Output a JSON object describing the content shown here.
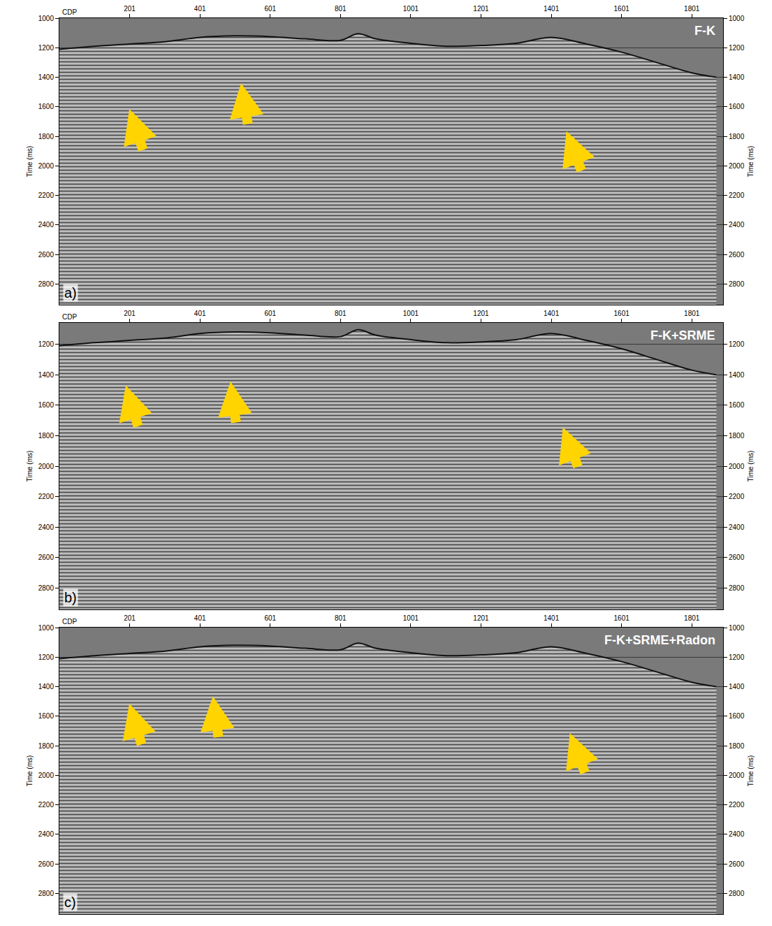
{
  "chart_data": [
    {
      "type": "area",
      "title": "F-K",
      "panel": "a)",
      "x_label": "CDP",
      "y_label": "Time (ms)",
      "x": [
        1,
        101,
        201,
        301,
        401,
        501,
        601,
        701,
        801,
        851,
        901,
        1001,
        1101,
        1201,
        1301,
        1401,
        1501,
        1601,
        1701,
        1801,
        1871
      ],
      "values": [
        1210,
        1190,
        1175,
        1160,
        1130,
        1120,
        1125,
        1140,
        1150,
        1105,
        1140,
        1170,
        1190,
        1185,
        1170,
        1130,
        1175,
        1230,
        1300,
        1370,
        1400
      ],
      "xlim": [
        1,
        1890
      ],
      "ylim": [
        1000,
        2940
      ],
      "xticks": [
        201,
        401,
        601,
        801,
        1001,
        1201,
        1401,
        1601,
        1801
      ],
      "yticks": [
        1000,
        1200,
        1400,
        1600,
        1800,
        2000,
        2200,
        2400,
        2600,
        2800
      ],
      "grid": true
    },
    {
      "type": "area",
      "title": "F-K+SRME",
      "panel": "b)",
      "x_label": "CDP",
      "y_label": "Time (ms)",
      "x": [
        1,
        101,
        201,
        301,
        401,
        501,
        601,
        701,
        801,
        851,
        901,
        1001,
        1101,
        1201,
        1301,
        1401,
        1501,
        1601,
        1701,
        1801,
        1871
      ],
      "values": [
        1210,
        1190,
        1175,
        1160,
        1130,
        1120,
        1125,
        1140,
        1150,
        1105,
        1140,
        1170,
        1190,
        1185,
        1170,
        1130,
        1175,
        1230,
        1300,
        1370,
        1400
      ],
      "xlim": [
        1,
        1890
      ],
      "ylim": [
        1060,
        2940
      ],
      "xticks": [
        201,
        401,
        601,
        801,
        1001,
        1201,
        1401,
        1601,
        1801
      ],
      "yticks": [
        1200,
        1400,
        1600,
        1800,
        2000,
        2200,
        2400,
        2600,
        2800
      ],
      "grid": true
    },
    {
      "type": "area",
      "title": "F-K+SRME+Radon",
      "panel": "c)",
      "x_label": "CDP",
      "y_label": "Time (ms)",
      "x": [
        1,
        101,
        201,
        301,
        401,
        501,
        601,
        701,
        801,
        851,
        901,
        1001,
        1101,
        1201,
        1301,
        1401,
        1501,
        1601,
        1701,
        1801,
        1871
      ],
      "values": [
        1210,
        1190,
        1175,
        1160,
        1130,
        1120,
        1125,
        1140,
        1150,
        1105,
        1140,
        1170,
        1190,
        1185,
        1170,
        1130,
        1175,
        1230,
        1300,
        1370,
        1400
      ],
      "xlim": [
        1,
        1890
      ],
      "ylim": [
        1000,
        2940
      ],
      "xticks": [
        201,
        401,
        601,
        801,
        1001,
        1201,
        1401,
        1601,
        1801
      ],
      "yticks": [
        1000,
        1200,
        1400,
        1600,
        1800,
        2000,
        2200,
        2400,
        2600,
        2800
      ],
      "grid": true
    }
  ]
}
